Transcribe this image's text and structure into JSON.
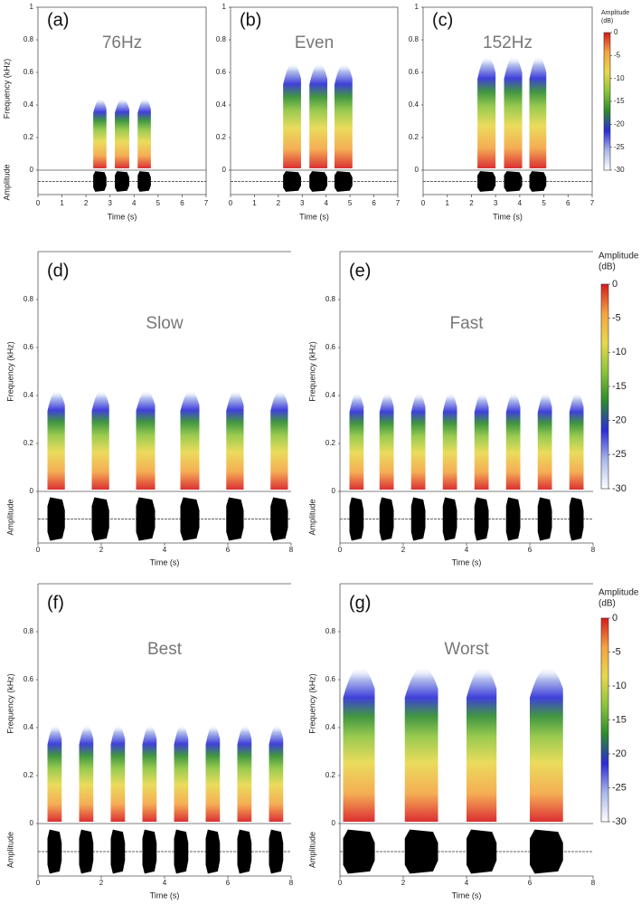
{
  "chart_data": [
    {
      "type": "spectrogram",
      "panel_label": "(a)",
      "title": "76Hz",
      "xlabel": "Time (s)",
      "ylabel": "Frequency (kHz)",
      "amplitude_label": "Amplitude",
      "xlim": [
        0,
        7
      ],
      "xticks": [
        0,
        1,
        2,
        3,
        4,
        5,
        6,
        7
      ],
      "ylim": [
        0,
        1
      ],
      "yticks": [
        0,
        0.2,
        0.4,
        0.6,
        0.8,
        1
      ],
      "bursts": {
        "starts": [
          2.3,
          3.2,
          4.15
        ],
        "ends": [
          2.85,
          3.8,
          4.7
        ],
        "peaks": [
          0.5,
          0.5,
          0.5
        ]
      }
    },
    {
      "type": "spectrogram",
      "panel_label": "(b)",
      "title": "Even",
      "xlabel": "Time (s)",
      "xlim": [
        0,
        7
      ],
      "xticks": [
        0,
        1,
        2,
        3,
        4,
        5,
        6,
        7
      ],
      "ylim": [
        0,
        1
      ],
      "yticks": [
        0,
        0.2,
        0.4,
        0.6,
        0.8,
        1
      ],
      "bursts": {
        "starts": [
          2.2,
          3.3,
          4.35
        ],
        "ends": [
          2.95,
          4.05,
          5.1
        ],
        "peaks": [
          0.75,
          0.75,
          0.75
        ]
      }
    },
    {
      "type": "spectrogram",
      "panel_label": "(c)",
      "title": "152Hz",
      "xlabel": "Time (s)",
      "xlim": [
        0,
        7
      ],
      "xticks": [
        0,
        1,
        2,
        3,
        4,
        5,
        6,
        7
      ],
      "ylim": [
        0,
        1
      ],
      "yticks": [
        0,
        0.2,
        0.4,
        0.6,
        0.8,
        1
      ],
      "bursts": {
        "starts": [
          2.25,
          3.35,
          4.4
        ],
        "ends": [
          3.0,
          4.1,
          5.1
        ],
        "peaks": [
          0.8,
          0.8,
          0.8
        ]
      },
      "colorbar": {
        "title": [
          "Amplitude",
          "(dB)"
        ],
        "lim": [
          -30,
          0
        ],
        "ticks": [
          0,
          -5,
          -10,
          -15,
          -20,
          -25,
          -30
        ],
        "colors": [
          "#d7191c",
          "#f4a442",
          "#e8d84a",
          "#8cc43c",
          "#2c8a2c",
          "#2b2bd6",
          "#aab8ea",
          "#ffffff"
        ]
      }
    },
    {
      "type": "spectrogram",
      "panel_label": "(d)",
      "title": "Slow",
      "xlabel": "Time (s)",
      "ylabel": "Frequency (kHz)",
      "amplitude_label": "Amplitude",
      "xlim": [
        0,
        8
      ],
      "xticks": [
        0,
        2,
        4,
        6,
        8
      ],
      "ylim": [
        0,
        1
      ],
      "yticks": [
        0,
        0.2,
        0.4,
        0.6,
        0.8
      ],
      "bursts": {
        "starts": [
          0.3,
          1.7,
          3.1,
          4.5,
          5.95,
          7.35
        ],
        "ends": [
          0.85,
          2.25,
          3.7,
          5.1,
          6.5,
          7.9
        ],
        "peaks": [
          0.48,
          0.48,
          0.48,
          0.48,
          0.48,
          0.48
        ]
      }
    },
    {
      "type": "spectrogram",
      "panel_label": "(e)",
      "title": "Fast",
      "xlabel": "Time (s)",
      "ylabel": "Frequency (kHz)",
      "amplitude_label": "Amplitude",
      "xlim": [
        0,
        8
      ],
      "xticks": [
        0,
        2,
        4,
        6,
        8
      ],
      "ylim": [
        0,
        1
      ],
      "yticks": [
        0,
        0.2,
        0.4,
        0.6,
        0.8
      ],
      "bursts": {
        "starts": [
          0.3,
          1.25,
          2.25,
          3.25,
          4.25,
          5.25,
          6.25,
          7.25
        ],
        "ends": [
          0.75,
          1.7,
          2.7,
          3.7,
          4.7,
          5.7,
          6.7,
          7.7
        ],
        "peaks": [
          0.47,
          0.47,
          0.47,
          0.47,
          0.47,
          0.47,
          0.47,
          0.47
        ]
      },
      "colorbar": {
        "title": [
          "Amplitude",
          "(dB)"
        ],
        "lim": [
          -30,
          0
        ],
        "ticks": [
          0,
          -5,
          -10,
          -15,
          -20,
          -25,
          -30
        ],
        "colors": [
          "#d7191c",
          "#f4a442",
          "#e8d84a",
          "#8cc43c",
          "#2c8a2c",
          "#2b2bd6",
          "#aab8ea",
          "#ffffff"
        ]
      }
    },
    {
      "type": "spectrogram",
      "panel_label": "(f)",
      "title": "Best",
      "xlabel": "Time (s)",
      "ylabel": "Frequency (kHz)",
      "amplitude_label": "Amplitude",
      "xlim": [
        0,
        8
      ],
      "xticks": [
        0,
        2,
        4,
        6,
        8
      ],
      "ylim": [
        0,
        1
      ],
      "yticks": [
        0,
        0.2,
        0.4,
        0.6,
        0.8
      ],
      "bursts": {
        "starts": [
          0.3,
          1.3,
          2.3,
          3.3,
          4.3,
          5.3,
          6.3,
          7.3
        ],
        "ends": [
          0.75,
          1.75,
          2.75,
          3.75,
          4.75,
          5.75,
          6.75,
          7.75
        ],
        "peaks": [
          0.47,
          0.47,
          0.47,
          0.47,
          0.47,
          0.47,
          0.47,
          0.47
        ]
      }
    },
    {
      "type": "spectrogram",
      "panel_label": "(g)",
      "title": "Worst",
      "xlabel": "Time (s)",
      "ylabel": "Frequency (kHz)",
      "amplitude_label": "Amplitude",
      "xlim": [
        0,
        8
      ],
      "xticks": [
        0,
        2,
        4,
        6,
        8
      ],
      "ylim": [
        0,
        1
      ],
      "yticks": [
        0,
        0.2,
        0.4,
        0.6,
        0.8
      ],
      "bursts": {
        "starts": [
          0.1,
          2.05,
          4.0,
          6.0
        ],
        "ends": [
          1.1,
          3.1,
          4.95,
          7.05
        ],
        "peaks": [
          0.75,
          0.75,
          0.75,
          0.75
        ]
      },
      "colorbar": {
        "title": [
          "Amplitude",
          "(dB)"
        ],
        "lim": [
          -30,
          0
        ],
        "ticks": [
          0,
          -5,
          -10,
          -15,
          -20,
          -25,
          -30
        ],
        "colors": [
          "#d7191c",
          "#f4a442",
          "#e8d84a",
          "#8cc43c",
          "#2c8a2c",
          "#2b2bd6",
          "#aab8ea",
          "#ffffff"
        ]
      }
    }
  ]
}
